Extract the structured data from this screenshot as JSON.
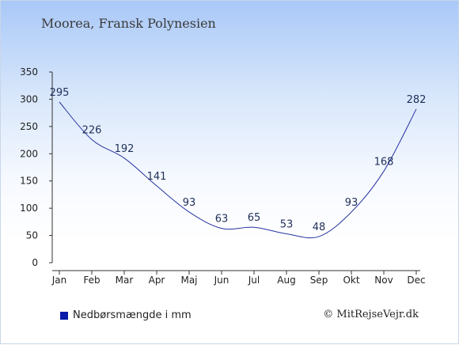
{
  "chart_data": {
    "type": "line",
    "title": "Moorea, Fransk Polynesien",
    "categories": [
      "Jan",
      "Feb",
      "Mar",
      "Apr",
      "Maj",
      "Jun",
      "Jul",
      "Aug",
      "Sep",
      "Okt",
      "Nov",
      "Dec"
    ],
    "series": [
      {
        "name": "Nedbørsmængde i mm",
        "values": [
          295,
          226,
          192,
          141,
          93,
          63,
          65,
          53,
          48,
          93,
          168,
          282
        ],
        "color": "#2633a0"
      }
    ],
    "yticks": [
      0,
      50,
      100,
      150,
      200,
      250,
      300,
      350
    ],
    "ylim": [
      0,
      350
    ],
    "grid": false,
    "legend_position": "bottom-left"
  },
  "legend": {
    "label": "Nedbørsmængde i mm",
    "swatch_color": "#0a1aa8"
  },
  "credit": "© MitRejseVejr.dk"
}
